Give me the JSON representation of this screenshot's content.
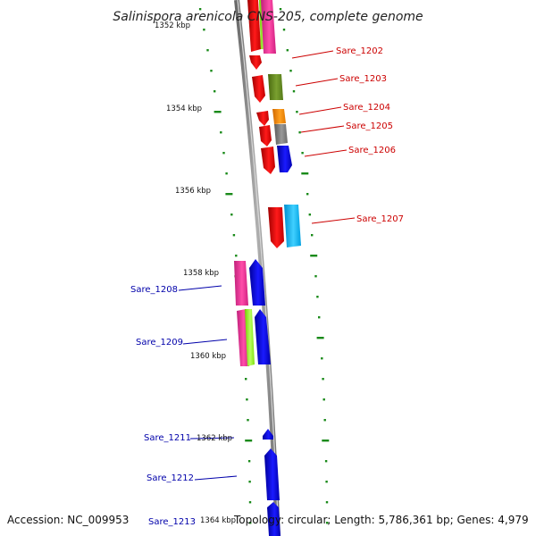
{
  "title": "Salinispora arenicola CNS-205, complete genome",
  "footer": {
    "accession": "Accession: NC_009953",
    "summary": "Topology: circular; Length: 5,786,361 bp; Genes: 4,979"
  },
  "kbp_labels": [
    "1352 kbp",
    "1354 kbp",
    "1356 kbp",
    "1358 kbp",
    "1360 kbp",
    "1362 kbp",
    "1364 kbp"
  ],
  "genes_right": [
    "Sare_1202",
    "Sare_1203",
    "Sare_1204",
    "Sare_1205",
    "Sare_1206",
    "Sare_1207"
  ],
  "genes_left": [
    "Sare_1208",
    "Sare_1209",
    "Sare_1211",
    "Sare_1212",
    "Sare_1213"
  ],
  "colors": {
    "label_right": "#cc0000",
    "label_left": "#0000aa",
    "tick": "#1a8a1a",
    "backbone": "#8a8a8a",
    "red": "#ee0000",
    "magenta": "#ff3399",
    "olive": "#6b8e23",
    "orange": "#ff8c00",
    "gray": "#808080",
    "blue": "#0000ee",
    "cyan": "#00bfff",
    "lime": "#99ff33"
  }
}
